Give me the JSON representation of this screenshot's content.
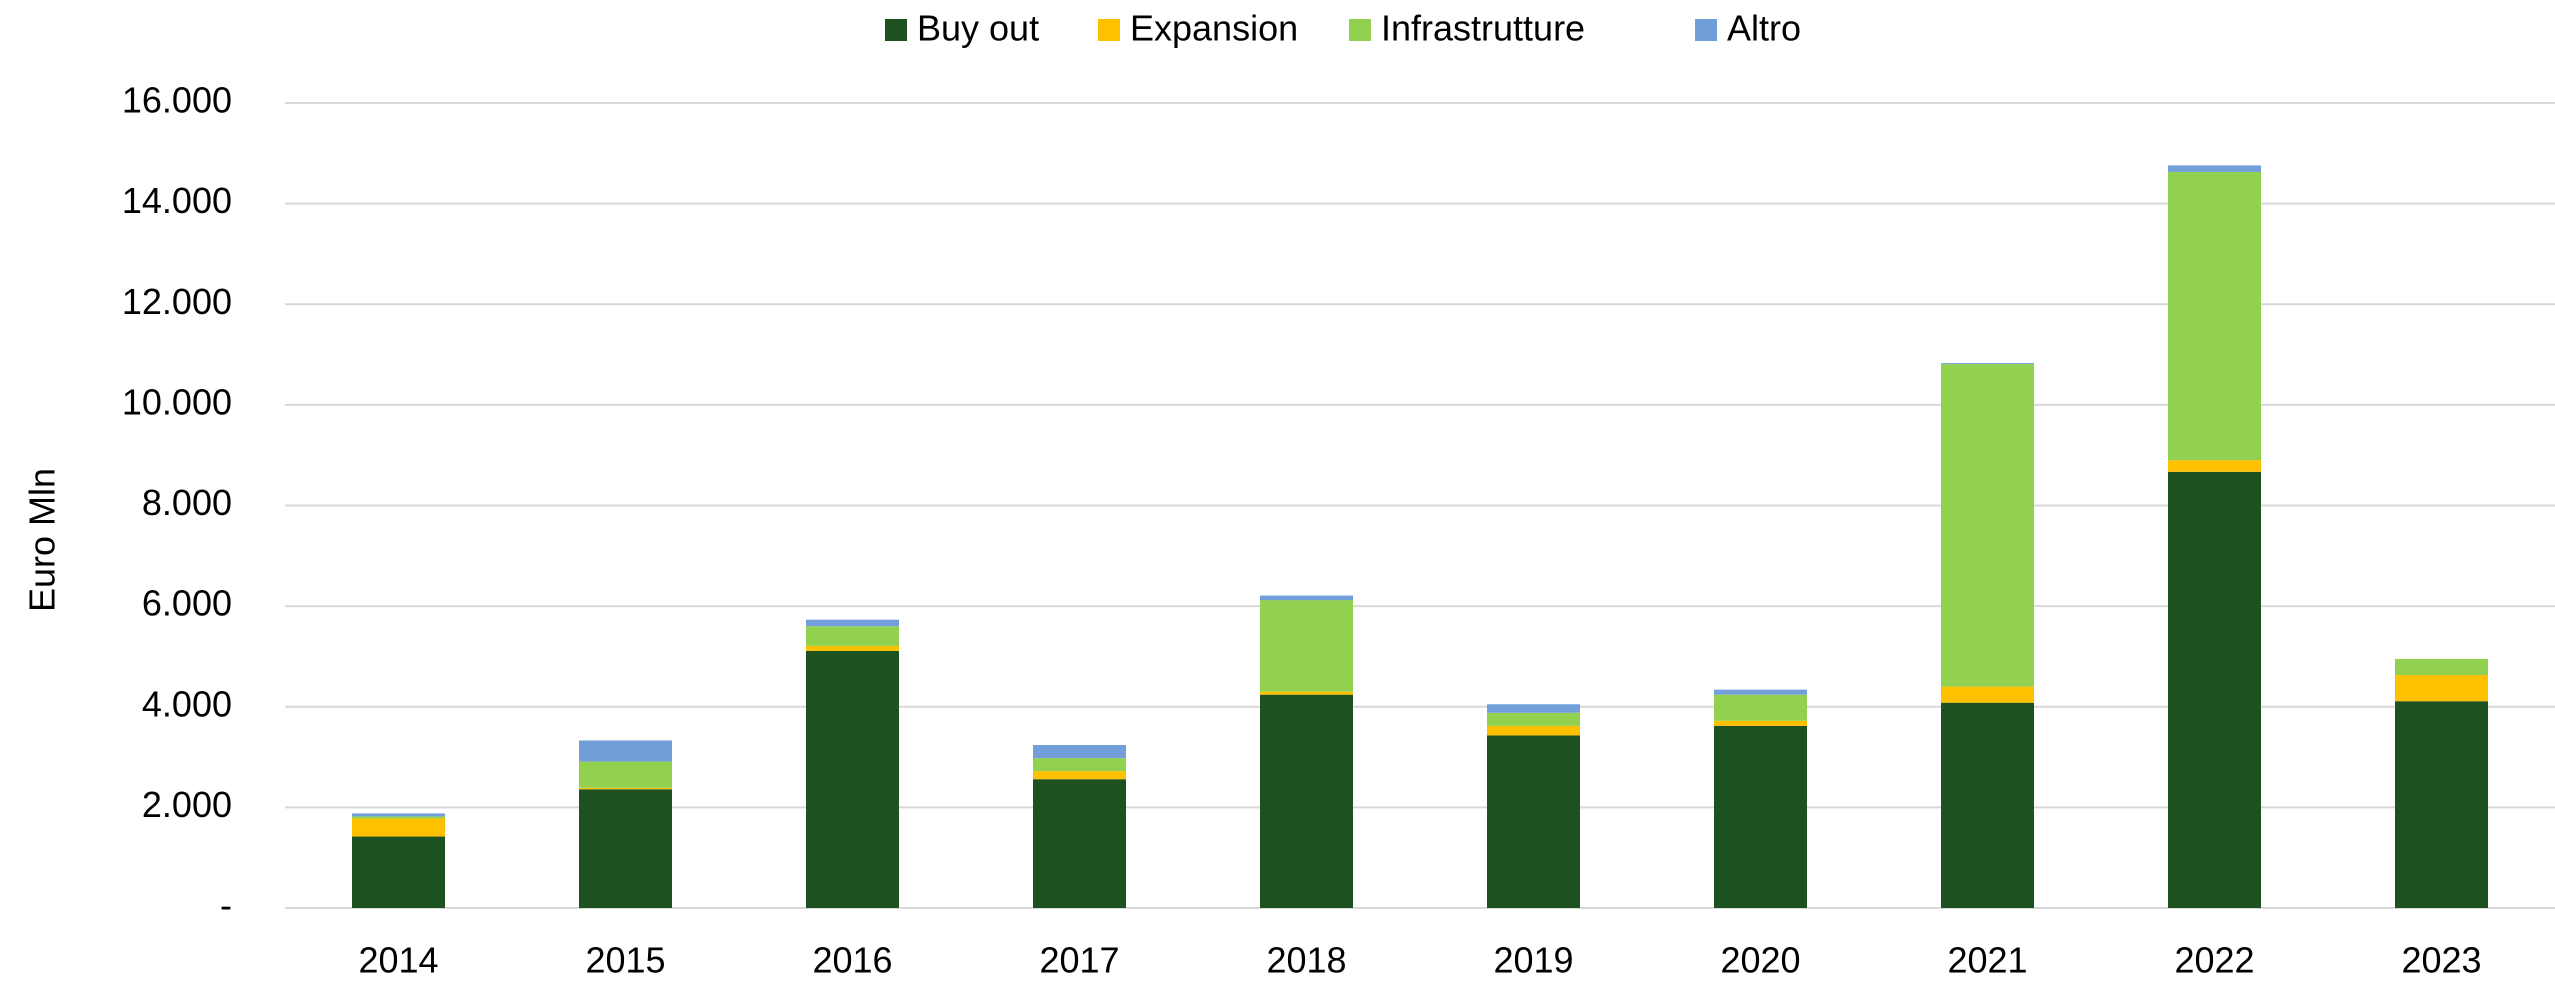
{
  "chart_data": {
    "type": "stacked_bar",
    "y_label": "Euro Mln",
    "categories": [
      "2014",
      "2015",
      "2016",
      "2017",
      "2018",
      "2019",
      "2020",
      "2021",
      "2022",
      "2023"
    ],
    "series": [
      {
        "name": "Buy out",
        "color": "#1e5120",
        "values": [
          1420,
          2360,
          5110,
          2560,
          4240,
          3430,
          3620,
          4080,
          8670,
          4110
        ]
      },
      {
        "name": "Expansion",
        "color": "#ffc000",
        "values": [
          360,
          30,
          100,
          160,
          60,
          190,
          100,
          320,
          230,
          520
        ]
      },
      {
        "name": "Infrastrutture",
        "color": "#92d050",
        "values": [
          40,
          520,
          390,
          260,
          1820,
          260,
          520,
          6410,
          5730,
          320
        ]
      },
      {
        "name": "Altro",
        "color": "#729fd9",
        "values": [
          60,
          420,
          130,
          260,
          90,
          170,
          100,
          20,
          130,
          0
        ]
      }
    ],
    "ylim": [
      0,
      16000
    ],
    "yticks": [
      {
        "value": 0,
        "label": "-"
      },
      {
        "value": 2000,
        "label": "2.000"
      },
      {
        "value": 4000,
        "label": "4.000"
      },
      {
        "value": 6000,
        "label": "6.000"
      },
      {
        "value": 8000,
        "label": "8.000"
      },
      {
        "value": 10000,
        "label": "10.000"
      },
      {
        "value": 12000,
        "label": "12.000"
      },
      {
        "value": 14000,
        "label": "14.000"
      },
      {
        "value": 16000,
        "label": "16.000"
      }
    ],
    "grid": true,
    "legend": "top"
  }
}
